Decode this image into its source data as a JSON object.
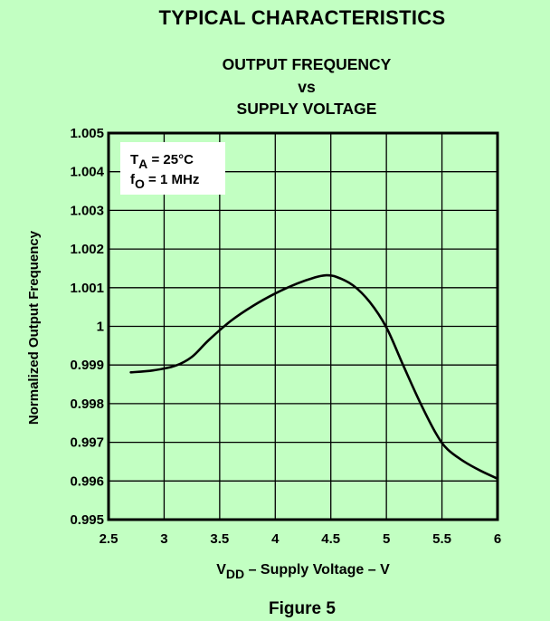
{
  "header": "TYPICAL CHARACTERISTICS",
  "figure_label": "Figure 5",
  "chart_data": {
    "type": "line",
    "title_lines": [
      "OUTPUT FREQUENCY",
      "vs",
      "SUPPLY VOLTAGE"
    ],
    "xlabel_main": "V",
    "xlabel_sub": "DD",
    "xlabel_rest": " – Supply Voltage – V",
    "ylabel": "Normalized Output Frequency",
    "xlim": [
      2.5,
      6
    ],
    "ylim": [
      0.995,
      1.005
    ],
    "x_ticks": [
      2.5,
      3,
      3.5,
      4,
      4.5,
      5,
      5.5,
      6
    ],
    "x_tick_labels": [
      "2.5",
      "3",
      "3.5",
      "4",
      "4.5",
      "5",
      "5.5",
      "6"
    ],
    "y_ticks": [
      0.995,
      0.996,
      0.997,
      0.998,
      0.999,
      1,
      1.001,
      1.002,
      1.003,
      1.004,
      1.005
    ],
    "y_tick_labels": [
      "0.995",
      "0.996",
      "0.997",
      "0.998",
      "0.999",
      "1",
      "1.001",
      "1.002",
      "1.003",
      "1.004",
      "1.005"
    ],
    "grid": true,
    "legend_lines": [
      {
        "main": "T",
        "sub": "A",
        "rest": " = 25°C"
      },
      {
        "main": "f",
        "sub": "O",
        "rest": " = 1 MHz"
      }
    ],
    "legend_placement": "top-left",
    "series": [
      {
        "values": [
          [
            2.7,
            0.99881
          ],
          [
            2.9,
            0.99886
          ],
          [
            3.1,
            0.99898
          ],
          [
            3.25,
            0.99921
          ],
          [
            3.4,
            0.99964
          ],
          [
            3.6,
            1.00014
          ],
          [
            3.8,
            1.00053
          ],
          [
            4.0,
            1.00085
          ],
          [
            4.2,
            1.00111
          ],
          [
            4.35,
            1.00126
          ],
          [
            4.45,
            1.00132
          ],
          [
            4.55,
            1.00128
          ],
          [
            4.7,
            1.00106
          ],
          [
            4.85,
            1.00063
          ],
          [
            5.0,
            0.99997
          ],
          [
            5.15,
            0.999
          ],
          [
            5.3,
            0.99805
          ],
          [
            5.45,
            0.99721
          ],
          [
            5.55,
            0.99682
          ],
          [
            5.7,
            0.9965
          ],
          [
            5.85,
            0.99626
          ],
          [
            6.0,
            0.99606
          ]
        ]
      }
    ]
  }
}
